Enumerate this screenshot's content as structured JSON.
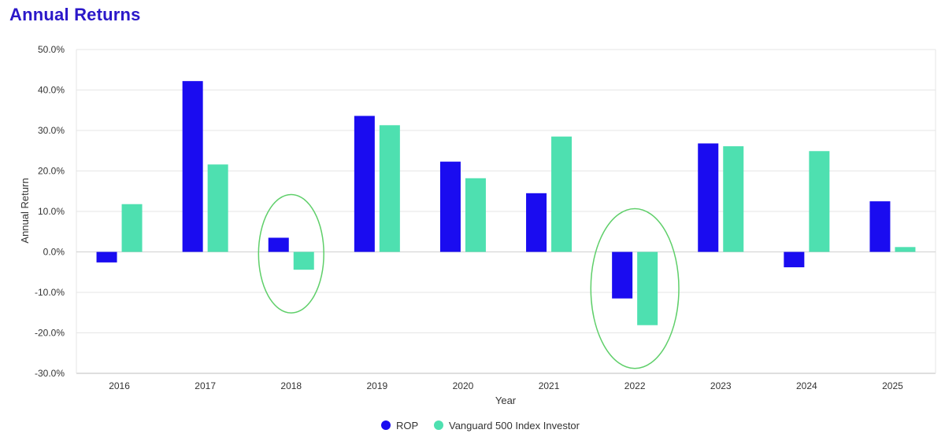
{
  "chart_data": {
    "type": "bar",
    "title": "Annual Returns",
    "xlabel": "Year",
    "ylabel": "Annual Return",
    "categories": [
      "2016",
      "2017",
      "2018",
      "2019",
      "2020",
      "2021",
      "2022",
      "2023",
      "2024",
      "2025"
    ],
    "series": [
      {
        "name": "ROP",
        "color": "#1a0cf0",
        "values": [
          -2.6,
          42.2,
          3.5,
          33.6,
          22.3,
          14.5,
          -11.5,
          26.8,
          -3.8,
          12.5
        ]
      },
      {
        "name": "Vanguard 500 Index Investor",
        "color": "#4ee0b0",
        "values": [
          11.8,
          21.6,
          -4.4,
          31.3,
          18.2,
          28.5,
          -18.1,
          26.1,
          24.9,
          1.2
        ]
      }
    ],
    "ylim": [
      -30,
      50
    ],
    "yticks": [
      50,
      40,
      30,
      20,
      10,
      0,
      -10,
      -20,
      -30
    ],
    "ytick_labels": [
      "50.0%",
      "40.0%",
      "30.0%",
      "20.0%",
      "10.0%",
      "0.0%",
      "-10.0%",
      "-20.0%",
      "-30.0%"
    ],
    "grid": true,
    "legend_position": "bottom-center",
    "highlights": [
      {
        "category": "2018",
        "shape": "ellipse",
        "color": "#5fcf6a"
      },
      {
        "category": "2022",
        "shape": "ellipse",
        "color": "#5fcf6a"
      }
    ]
  }
}
